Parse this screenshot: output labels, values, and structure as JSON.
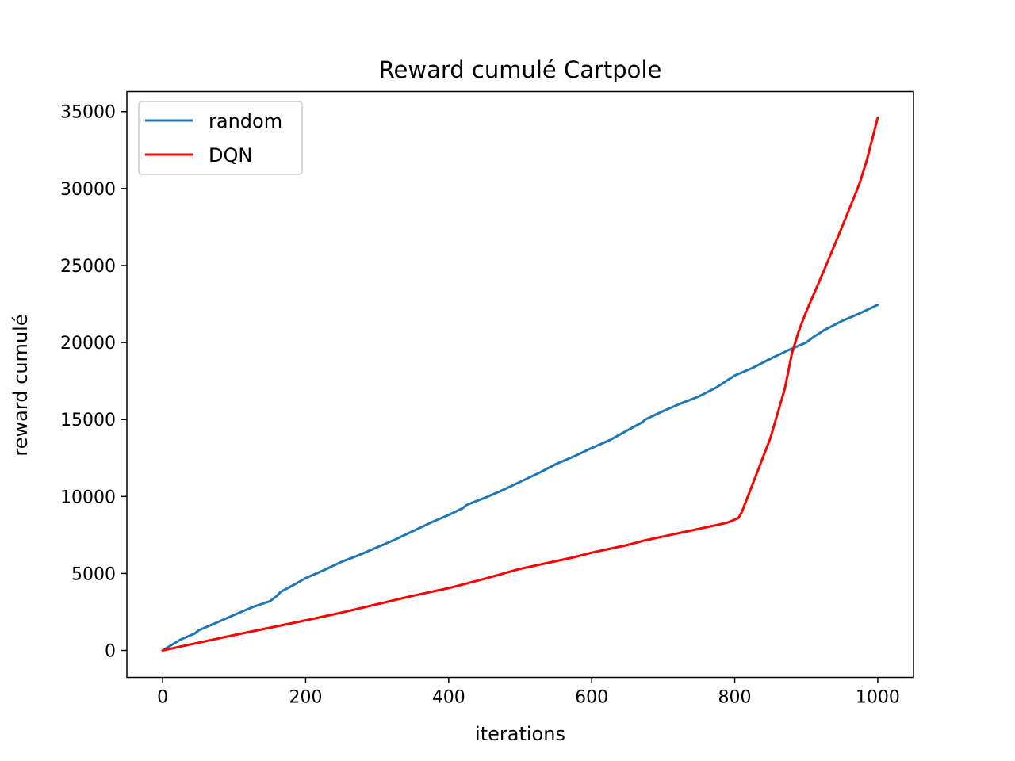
{
  "chart_data": {
    "type": "line",
    "title": "Reward cumulé Cartpole",
    "xlabel": "iterations",
    "ylabel": "reward cumulé",
    "xlim": [
      -50,
      1050
    ],
    "ylim": [
      -1750,
      36300
    ],
    "xticks": [
      0,
      200,
      400,
      600,
      800,
      1000
    ],
    "yticks": [
      0,
      5000,
      10000,
      15000,
      20000,
      25000,
      30000,
      35000
    ],
    "grid": false,
    "legend_position": "top-left",
    "series": [
      {
        "name": "random",
        "color": "#1f77b4",
        "x": [
          0,
          25,
          45,
          50,
          75,
          100,
          125,
          150,
          160,
          165,
          185,
          200,
          225,
          250,
          275,
          300,
          325,
          350,
          375,
          400,
          420,
          425,
          450,
          475,
          500,
          525,
          550,
          575,
          600,
          625,
          650,
          670,
          675,
          700,
          725,
          750,
          775,
          800,
          825,
          850,
          875,
          900,
          910,
          925,
          950,
          975,
          1000
        ],
        "y": [
          0,
          700,
          1100,
          1300,
          1800,
          2300,
          2800,
          3200,
          3550,
          3800,
          4300,
          4700,
          5200,
          5750,
          6200,
          6700,
          7200,
          7750,
          8300,
          8800,
          9250,
          9450,
          9900,
          10400,
          10950,
          11500,
          12100,
          12600,
          13150,
          13650,
          14300,
          14800,
          15000,
          15550,
          16050,
          16500,
          17100,
          17850,
          18350,
          18950,
          19500,
          20000,
          20350,
          20800,
          21400,
          21900,
          22450
        ]
      },
      {
        "name": "DQN",
        "color": "#ff0000",
        "x": [
          0,
          100,
          200,
          250,
          300,
          350,
          400,
          450,
          500,
          525,
          550,
          560,
          575,
          600,
          650,
          675,
          700,
          750,
          790,
          795,
          805,
          810,
          825,
          850,
          870,
          880,
          890,
          900,
          925,
          950,
          970,
          975,
          985,
          995,
          1000
        ],
        "y": [
          0,
          1000,
          1950,
          2450,
          3000,
          3550,
          4050,
          4650,
          5300,
          5550,
          5800,
          5900,
          6050,
          6350,
          6850,
          7150,
          7400,
          7900,
          8300,
          8400,
          8600,
          9000,
          10800,
          13800,
          17000,
          19300,
          20800,
          22000,
          24700,
          27500,
          29800,
          30400,
          31900,
          33700,
          34600
        ]
      }
    ]
  }
}
